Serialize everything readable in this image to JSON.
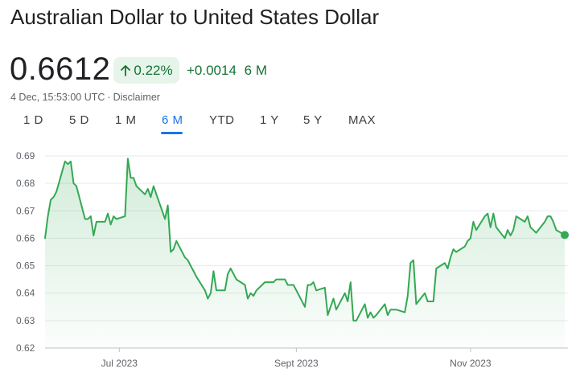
{
  "header": {
    "title": "Australian Dollar to United States Dollar",
    "price": "0.6612",
    "percent_change": "0.22%",
    "abs_change": "+0.0014",
    "period": "6 M",
    "timestamp": "4 Dec, 15:53:00 UTC",
    "separator": "·",
    "disclaimer": "Disclaimer"
  },
  "tabs": [
    {
      "label": "1 D",
      "active": false
    },
    {
      "label": "5 D",
      "active": false
    },
    {
      "label": "1 M",
      "active": false
    },
    {
      "label": "6 M",
      "active": true
    },
    {
      "label": "YTD",
      "active": false
    },
    {
      "label": "1 Y",
      "active": false
    },
    {
      "label": "5 Y",
      "active": false
    },
    {
      "label": "MAX",
      "active": false
    }
  ],
  "colors": {
    "positive": "#137333",
    "line": "#34a853",
    "accent": "#1a73e8"
  },
  "icons": {
    "change_arrow": "arrow-up-icon"
  },
  "chart_data": {
    "type": "area",
    "ylim": [
      0.62,
      0.69
    ],
    "y_ticks": [
      "0.62",
      "0.63",
      "0.64",
      "0.65",
      "0.66",
      "0.67",
      "0.68",
      "0.69"
    ],
    "x_ticks": [
      {
        "label": "Jul 2023",
        "date": "2023-07-01"
      },
      {
        "label": "Sept 2023",
        "date": "2023-09-01"
      },
      {
        "label": "Nov 2023",
        "date": "2023-11-01"
      }
    ],
    "x_range": [
      "2023-06-05",
      "2023-12-04"
    ],
    "grid": true,
    "series": [
      {
        "x": [
          "2023-06-05",
          "2023-06-06",
          "2023-06-07",
          "2023-06-08",
          "2023-06-09",
          "2023-06-12",
          "2023-06-13",
          "2023-06-14",
          "2023-06-15",
          "2023-06-16",
          "2023-06-19",
          "2023-06-20",
          "2023-06-21",
          "2023-06-22",
          "2023-06-23",
          "2023-06-26",
          "2023-06-27",
          "2023-06-28",
          "2023-06-29",
          "2023-06-30",
          "2023-07-03",
          "2023-07-04",
          "2023-07-05",
          "2023-07-06",
          "2023-07-07",
          "2023-07-10",
          "2023-07-11",
          "2023-07-12",
          "2023-07-13",
          "2023-07-14",
          "2023-07-17",
          "2023-07-18",
          "2023-07-19",
          "2023-07-20",
          "2023-07-21",
          "2023-07-24",
          "2023-07-25",
          "2023-07-26",
          "2023-07-27",
          "2023-07-28",
          "2023-07-31",
          "2023-08-01",
          "2023-08-02",
          "2023-08-03",
          "2023-08-04",
          "2023-08-07",
          "2023-08-08",
          "2023-08-09",
          "2023-08-10",
          "2023-08-11",
          "2023-08-14",
          "2023-08-15",
          "2023-08-16",
          "2023-08-17",
          "2023-08-18",
          "2023-08-21",
          "2023-08-22",
          "2023-08-23",
          "2023-08-24",
          "2023-08-25",
          "2023-08-28",
          "2023-08-29",
          "2023-08-30",
          "2023-08-31",
          "2023-09-01",
          "2023-09-04",
          "2023-09-05",
          "2023-09-06",
          "2023-09-07",
          "2023-09-08",
          "2023-09-11",
          "2023-09-12",
          "2023-09-13",
          "2023-09-14",
          "2023-09-15",
          "2023-09-18",
          "2023-09-19",
          "2023-09-20",
          "2023-09-21",
          "2023-09-22",
          "2023-09-25",
          "2023-09-26",
          "2023-09-27",
          "2023-09-28",
          "2023-09-29",
          "2023-10-02",
          "2023-10-03",
          "2023-10-04",
          "2023-10-05",
          "2023-10-06",
          "2023-10-09",
          "2023-10-10",
          "2023-10-11",
          "2023-10-12",
          "2023-10-13",
          "2023-10-16",
          "2023-10-17",
          "2023-10-18",
          "2023-10-19",
          "2023-10-20",
          "2023-10-23",
          "2023-10-24",
          "2023-10-25",
          "2023-10-26",
          "2023-10-27",
          "2023-10-30",
          "2023-10-31",
          "2023-11-01",
          "2023-11-02",
          "2023-11-03",
          "2023-11-06",
          "2023-11-07",
          "2023-11-08",
          "2023-11-09",
          "2023-11-10",
          "2023-11-13",
          "2023-11-14",
          "2023-11-15",
          "2023-11-16",
          "2023-11-17",
          "2023-11-20",
          "2023-11-21",
          "2023-11-22",
          "2023-11-23",
          "2023-11-24",
          "2023-11-27",
          "2023-11-28",
          "2023-11-29",
          "2023-11-30",
          "2023-12-01",
          "2023-12-04"
        ],
        "values": [
          0.66,
          0.668,
          0.674,
          0.675,
          0.677,
          0.688,
          0.687,
          0.688,
          0.68,
          0.679,
          0.667,
          0.667,
          0.668,
          0.661,
          0.666,
          0.666,
          0.669,
          0.665,
          0.668,
          0.667,
          0.668,
          0.689,
          0.682,
          0.682,
          0.679,
          0.676,
          0.678,
          0.675,
          0.679,
          0.676,
          0.667,
          0.672,
          0.655,
          0.656,
          0.659,
          0.653,
          0.652,
          0.65,
          0.648,
          0.646,
          0.641,
          0.638,
          0.64,
          0.648,
          0.641,
          0.641,
          0.647,
          0.649,
          0.647,
          0.645,
          0.643,
          0.638,
          0.64,
          0.639,
          0.641,
          0.644,
          0.644,
          0.644,
          0.644,
          0.645,
          0.645,
          0.643,
          0.643,
          0.643,
          0.641,
          0.635,
          0.643,
          0.643,
          0.644,
          0.641,
          0.642,
          0.632,
          0.635,
          0.638,
          0.634,
          0.64,
          0.637,
          0.644,
          0.63,
          0.63,
          0.636,
          0.631,
          0.633,
          0.631,
          0.632,
          0.636,
          0.632,
          0.634,
          0.634,
          0.634,
          0.633,
          0.639,
          0.651,
          0.652,
          0.636,
          0.64,
          0.637,
          0.637,
          0.637,
          0.649,
          0.651,
          0.649,
          0.653,
          0.656,
          0.655,
          0.657,
          0.659,
          0.66,
          0.666,
          0.663,
          0.668,
          0.669,
          0.664,
          0.669,
          0.664,
          0.66,
          0.663,
          0.661,
          0.663,
          0.668,
          0.666,
          0.668,
          0.664,
          0.663,
          0.662,
          0.666,
          0.668,
          0.668,
          0.666,
          0.663,
          0.6612
        ]
      }
    ]
  }
}
